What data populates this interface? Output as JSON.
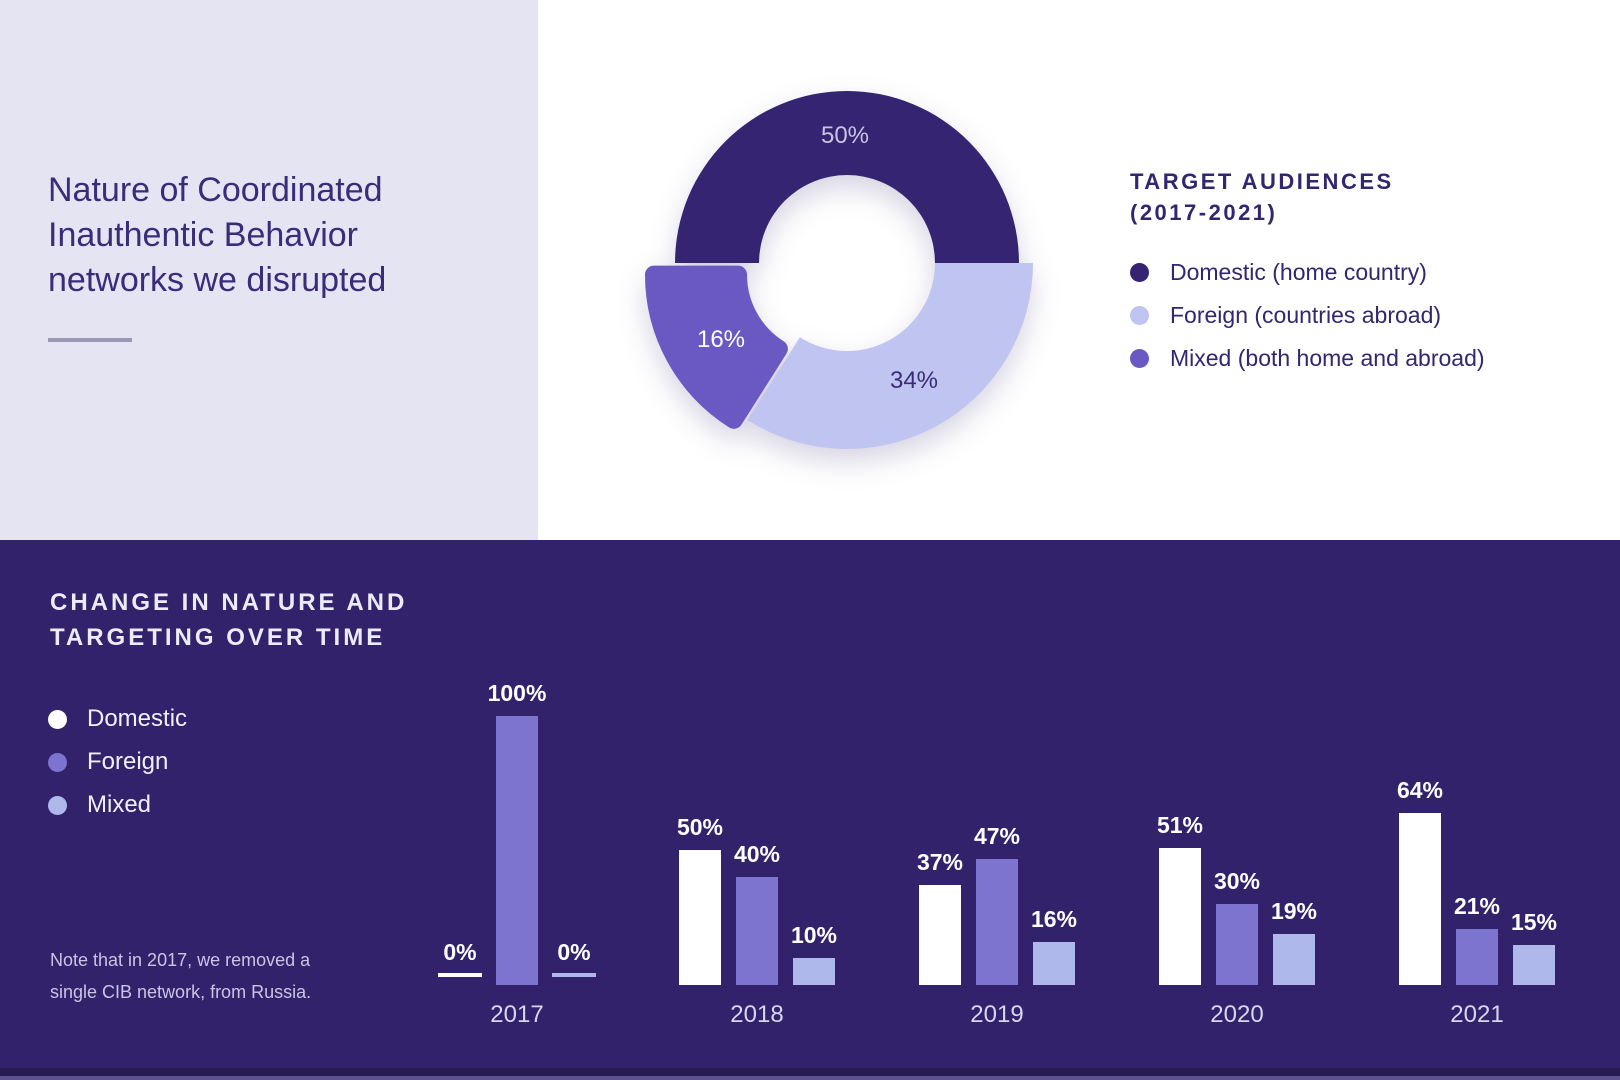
{
  "colors": {
    "left_panel_bg": "#E4E4F3",
    "bottom_panel_bg": "#32226B",
    "title_text": "#3B2C7A",
    "legend_text_top": "#33256F",
    "heading_text_bottom": "#EDEBF8",
    "note_text": "#C9C5E2",
    "year_label_text": "#D8D5EF",
    "value_label_text": "#FFFFFF",
    "divider": "#9B98B7",
    "domestic": "#352471",
    "foreign_light": "#BFC5F0",
    "mixed_violet": "#6B59C3",
    "bar_domestic": "#FFFFFF",
    "bar_foreign": "#7C74CE",
    "bar_mixed": "#AFB8EB"
  },
  "left_panel": {
    "title_lines": [
      "Nature of Coordinated",
      "Inauthentic Behavior",
      "networks we disrupted"
    ]
  },
  "chart_data": [
    {
      "type": "pie",
      "donut": true,
      "title": "TARGET AUDIENCES (2017-2021)",
      "title_lines": [
        "TARGET AUDIENCES",
        "(2017-2021)"
      ],
      "legend_position": "right",
      "segments": [
        {
          "label": "Domestic (home country)",
          "value": 50,
          "display": "50%",
          "color": "#352471"
        },
        {
          "label": "Foreign (countries abroad)",
          "value": 34,
          "display": "34%",
          "color": "#BFC5F0"
        },
        {
          "label": "Mixed (both home and abroad)",
          "value": 16,
          "display": "16%",
          "color": "#6B59C3"
        }
      ]
    },
    {
      "type": "bar",
      "title": "CHANGE IN NATURE AND TARGETING OVER TIME",
      "title_lines": [
        "CHANGE IN NATURE AND",
        "TARGETING OVER TIME"
      ],
      "categories": [
        "2017",
        "2018",
        "2019",
        "2020",
        "2021"
      ],
      "series": [
        {
          "name": "Domestic",
          "color": "#FFFFFF",
          "values": [
            0,
            50,
            37,
            51,
            64
          ]
        },
        {
          "name": "Foreign",
          "color": "#7C74CE",
          "values": [
            100,
            40,
            47,
            30,
            21
          ]
        },
        {
          "name": "Mixed",
          "color": "#AFB8EB",
          "values": [
            0,
            10,
            16,
            19,
            15
          ]
        }
      ],
      "value_suffix": "%",
      "ylim": [
        0,
        100
      ],
      "grid": false,
      "legend_position": "left",
      "note_lines": [
        "Note that in 2017, we removed a",
        "single CIB network, from Russia."
      ]
    }
  ]
}
